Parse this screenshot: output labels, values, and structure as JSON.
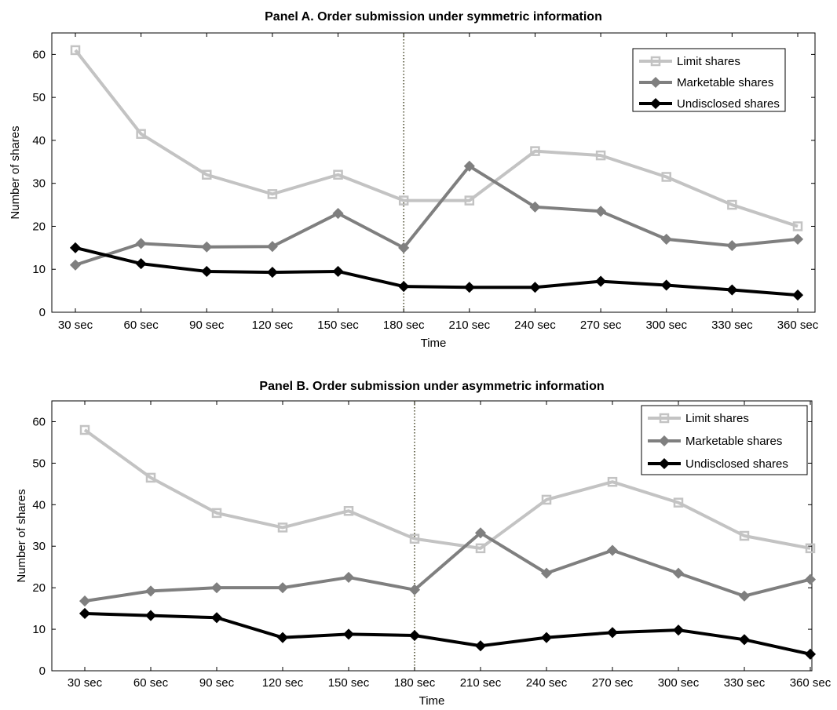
{
  "chart_data": [
    {
      "type": "line",
      "title": "Panel A. Order submission under symmetric information",
      "xlabel": "Time",
      "ylabel": "Number of shares",
      "categories": [
        "30 sec",
        "60 sec",
        "90 sec",
        "120 sec",
        "150 sec",
        "180 sec",
        "210 sec",
        "240 sec",
        "270 sec",
        "300 sec",
        "330 sec",
        "360 sec"
      ],
      "ylim": [
        0,
        65
      ],
      "yticks": [
        0,
        10,
        20,
        30,
        40,
        50,
        60
      ],
      "grid": false,
      "legend_position": "top-right",
      "vline_at": "180 sec",
      "series": [
        {
          "name": "Limit shares",
          "color": "#c3c3c3",
          "marker": "square",
          "values": [
            61,
            41.5,
            32,
            27.5,
            32,
            26,
            26,
            37.5,
            36.5,
            31.5,
            25,
            20
          ]
        },
        {
          "name": "Marketable shares",
          "color": "#7f7f7f",
          "marker": "diamond",
          "values": [
            11,
            16,
            15.2,
            15.3,
            23,
            15,
            34,
            24.5,
            23.5,
            17,
            15.5,
            17
          ]
        },
        {
          "name": "Undisclosed shares",
          "color": "#000000",
          "marker": "diamond",
          "values": [
            15,
            11.3,
            9.5,
            9.3,
            9.5,
            6,
            5.8,
            5.8,
            7.2,
            6.3,
            5.2,
            4
          ]
        }
      ]
    },
    {
      "type": "line",
      "title": "Panel B. Order submission under asymmetric information",
      "xlabel": "Time",
      "ylabel": "Number of shares",
      "categories": [
        "30 sec",
        "60 sec",
        "90 sec",
        "120 sec",
        "150 sec",
        "180 sec",
        "210 sec",
        "240 sec",
        "270 sec",
        "300 sec",
        "330 sec",
        "360 sec"
      ],
      "ylim": [
        0,
        65
      ],
      "yticks": [
        0,
        10,
        20,
        30,
        40,
        50,
        60
      ],
      "grid": false,
      "legend_position": "top-right",
      "vline_at": "180 sec",
      "series": [
        {
          "name": "Limit shares",
          "color": "#c3c3c3",
          "marker": "square",
          "values": [
            58,
            46.5,
            38,
            34.5,
            38.5,
            31.8,
            29.5,
            41.2,
            45.5,
            40.5,
            32.5,
            29.5
          ]
        },
        {
          "name": "Marketable shares",
          "color": "#7f7f7f",
          "marker": "diamond",
          "values": [
            16.8,
            19.2,
            20,
            20,
            22.5,
            19.5,
            33.2,
            23.5,
            29,
            23.5,
            18,
            22
          ]
        },
        {
          "name": "Undisclosed shares",
          "color": "#000000",
          "marker": "diamond",
          "values": [
            13.8,
            13.3,
            12.8,
            8,
            8.8,
            8.5,
            6,
            8,
            9.2,
            9.8,
            7.5,
            4
          ]
        }
      ]
    }
  ]
}
